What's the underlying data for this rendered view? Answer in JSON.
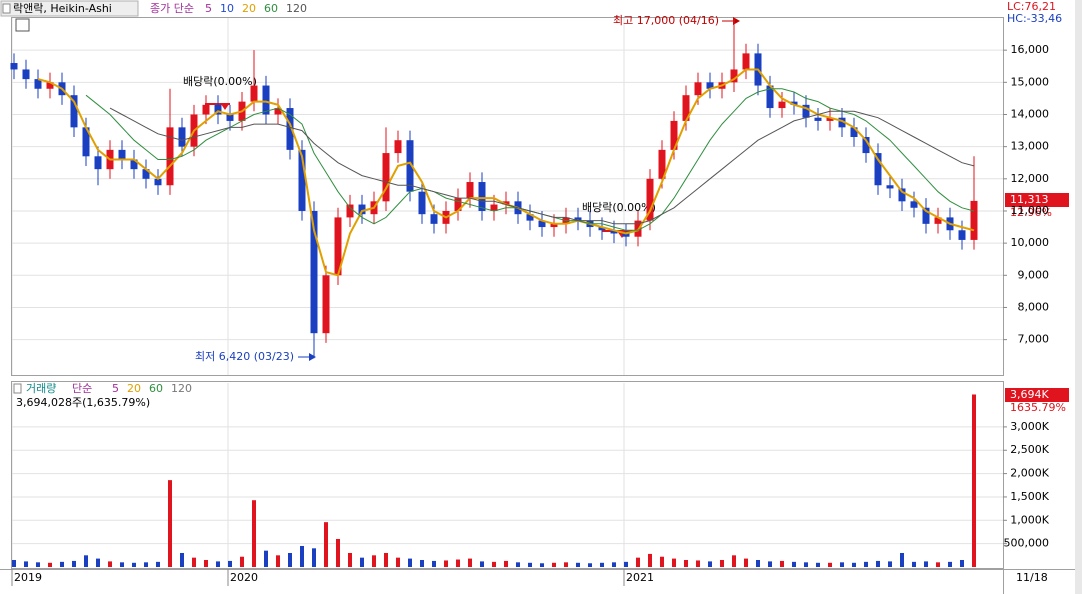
{
  "header": {
    "title": "락앤락, Heikin-Ashi",
    "lc": "LC:76,21",
    "hc": "HC:-33,46"
  },
  "chart_data": [
    {
      "type": "candlestick",
      "categories": [
        "2019",
        null,
        null,
        null,
        null,
        null,
        null,
        null,
        null,
        null,
        null,
        null,
        null,
        null,
        null,
        null,
        null,
        null,
        "2020",
        null,
        null,
        null,
        null,
        null,
        null,
        null,
        null,
        null,
        null,
        null,
        null,
        null,
        null,
        null,
        null,
        null,
        null,
        null,
        null,
        null,
        null,
        null,
        null,
        null,
        null,
        null,
        null,
        null,
        null,
        null,
        null,
        "2021",
        null,
        null,
        null,
        null,
        null,
        null,
        null,
        null,
        null,
        null,
        null,
        null,
        null,
        null,
        null,
        null,
        null,
        null,
        null,
        null,
        null,
        null,
        null,
        null,
        null,
        null,
        null,
        null,
        "11/18"
      ],
      "open": [
        15600,
        15400,
        15100,
        14800,
        15000,
        14600,
        13600,
        12700,
        12300,
        12900,
        12600,
        12300,
        12000,
        11800,
        13600,
        13000,
        14000,
        14300,
        14000,
        13800,
        14400,
        14900,
        14000,
        14200,
        12900,
        11000,
        7200,
        9000,
        10800,
        11200,
        10900,
        11300,
        12800,
        13200,
        11600,
        10900,
        10600,
        11000,
        11400,
        11900,
        11000,
        11200,
        11300,
        10900,
        10700,
        10500,
        10600,
        10800,
        10700,
        10500,
        10400,
        10300,
        10200,
        10700,
        12000,
        12900,
        13800,
        14600,
        15000,
        14800,
        15000,
        15400,
        15900,
        14900,
        14200,
        14400,
        14300,
        13900,
        13800,
        13900,
        13600,
        13300,
        12800,
        11800,
        11700,
        11300,
        11100,
        10600,
        10800,
        10400,
        10100
      ],
      "high": [
        15900,
        15700,
        15400,
        15300,
        15300,
        14900,
        13900,
        13000,
        13200,
        13200,
        12900,
        12600,
        12300,
        14800,
        13900,
        14300,
        14600,
        14600,
        14300,
        14700,
        16000,
        15200,
        14500,
        14500,
        13200,
        11300,
        9300,
        11100,
        11500,
        11500,
        11600,
        13600,
        13500,
        13500,
        11900,
        11200,
        11300,
        11700,
        12200,
        12200,
        11500,
        11600,
        11600,
        11200,
        11000,
        10900,
        11100,
        11100,
        11000,
        10800,
        10700,
        10600,
        11000,
        12300,
        13200,
        14100,
        14900,
        15300,
        15300,
        15300,
        17000,
        16200,
        16200,
        15200,
        14700,
        14700,
        14600,
        14200,
        14200,
        14200,
        13900,
        13600,
        13100,
        12100,
        12000,
        11600,
        11400,
        11100,
        11100,
        10700,
        12700
      ],
      "low": [
        15100,
        14800,
        14500,
        14500,
        14300,
        13300,
        12400,
        11800,
        12000,
        12300,
        12000,
        11700,
        11500,
        11500,
        12700,
        12700,
        13700,
        13700,
        13500,
        13500,
        14100,
        13700,
        13700,
        12600,
        10700,
        6420,
        6900,
        8700,
        10500,
        10600,
        10600,
        11000,
        12500,
        11300,
        10600,
        10300,
        10300,
        10700,
        11100,
        10700,
        10700,
        10900,
        10600,
        10400,
        10200,
        10200,
        10300,
        10400,
        10200,
        10100,
        10000,
        9900,
        9900,
        10400,
        11700,
        12600,
        13500,
        14300,
        14500,
        14500,
        14700,
        15100,
        14600,
        13900,
        13900,
        14000,
        13600,
        13500,
        13500,
        13300,
        13000,
        12500,
        11500,
        11400,
        11000,
        10800,
        10300,
        10300,
        10100,
        9800,
        9800
      ],
      "close": [
        15400,
        15100,
        14800,
        15000,
        14600,
        13600,
        12700,
        12300,
        12900,
        12600,
        12300,
        12000,
        11800,
        13600,
        13000,
        14000,
        14300,
        14000,
        13800,
        14400,
        14900,
        14000,
        14200,
        12900,
        11000,
        7200,
        9000,
        10800,
        11200,
        10900,
        11300,
        12800,
        13200,
        11600,
        10900,
        10600,
        11000,
        11400,
        11900,
        11000,
        11200,
        11300,
        10900,
        10700,
        10500,
        10600,
        10800,
        10700,
        10500,
        10400,
        10300,
        10200,
        10700,
        12000,
        12900,
        13800,
        14600,
        15000,
        14800,
        15000,
        15400,
        15900,
        14900,
        14200,
        14400,
        14300,
        13900,
        13800,
        13900,
        13600,
        13300,
        12800,
        11800,
        11700,
        11300,
        11100,
        10600,
        10800,
        10400,
        10100,
        11313
      ],
      "up_color": "#e0141e",
      "down_color": "#1a3fc0",
      "ylim": [
        5900,
        17000
      ],
      "yticks": [
        {
          "value": 7000,
          "label": "7,000"
        },
        {
          "value": 8000,
          "label": "8,000"
        },
        {
          "value": 9000,
          "label": "9,000"
        },
        {
          "value": 10000,
          "label": "10,000"
        },
        {
          "value": 11000,
          "label": "11,000"
        },
        {
          "value": 12000,
          "label": "12,000"
        },
        {
          "value": 13000,
          "label": "13,000"
        },
        {
          "value": 14000,
          "label": "14,000"
        },
        {
          "value": 15000,
          "label": "15,000"
        },
        {
          "value": 16000,
          "label": "16,000"
        }
      ],
      "grid": true,
      "legend_label": "종가 단순",
      "moving_averages": [
        {
          "name": "5",
          "color": "#a0309a"
        },
        {
          "name": "10",
          "color": "#1f4bd1"
        },
        {
          "name": "20",
          "color": "#e0a000",
          "values": [
            null,
            null,
            15100,
            15000,
            14800,
            14400,
            13600,
            12900,
            12600,
            12600,
            12600,
            12300,
            12000,
            12400,
            12800,
            13500,
            13800,
            14100,
            14000,
            14100,
            14400,
            14400,
            14300,
            13700,
            12700,
            10400,
            9100,
            9000,
            10300,
            11000,
            11100,
            11700,
            12400,
            12500,
            11900,
            11000,
            10800,
            11000,
            11400,
            11400,
            11400,
            11200,
            11100,
            10900,
            10700,
            10600,
            10600,
            10700,
            10600,
            10500,
            10400,
            10300,
            10400,
            11000,
            11900,
            12900,
            13800,
            14500,
            14800,
            14900,
            15100,
            15400,
            15400,
            14900,
            14500,
            14300,
            14200,
            14000,
            13900,
            13800,
            13600,
            13200,
            12600,
            12100,
            11600,
            11400,
            11000,
            10800,
            10600,
            10500,
            10400
          ]
        },
        {
          "name": "60",
          "color": "#2f8f3f",
          "values": [
            null,
            null,
            null,
            null,
            null,
            null,
            14600,
            14300,
            14000,
            13600,
            13200,
            12900,
            12600,
            12600,
            12700,
            12900,
            13200,
            13400,
            13600,
            13800,
            14000,
            14100,
            14200,
            14000,
            13700,
            12800,
            12200,
            11600,
            11100,
            10800,
            10600,
            10800,
            11200,
            11600,
            11700,
            11600,
            11400,
            11300,
            11200,
            11100,
            11000,
            11100,
            11100,
            11000,
            10900,
            10800,
            10700,
            10700,
            10600,
            10600,
            10500,
            10400,
            10400,
            10600,
            10900,
            11400,
            12000,
            12600,
            13200,
            13700,
            14100,
            14500,
            14700,
            14800,
            14800,
            14700,
            14500,
            14400,
            14200,
            14100,
            14000,
            13800,
            13500,
            13200,
            12800,
            12400,
            12000,
            11600,
            11300,
            11100,
            11000
          ]
        },
        {
          "name": "120",
          "color": "#555555",
          "values": [
            null,
            null,
            null,
            null,
            null,
            null,
            null,
            null,
            14200,
            14000,
            13800,
            13600,
            13400,
            13300,
            13200,
            13300,
            13400,
            13500,
            13600,
            13600,
            13700,
            13700,
            13700,
            13600,
            13500,
            13100,
            12800,
            12500,
            12300,
            12100,
            12000,
            11900,
            11800,
            11800,
            11700,
            11600,
            11500,
            11400,
            11400,
            11300,
            11300,
            11200,
            11100,
            11000,
            10900,
            10800,
            10800,
            10700,
            10700,
            10700,
            10600,
            10600,
            10600,
            10700,
            10900,
            11100,
            11400,
            11700,
            12000,
            12300,
            12600,
            12900,
            13200,
            13400,
            13600,
            13800,
            13900,
            14000,
            14100,
            14100,
            14100,
            14000,
            13900,
            13700,
            13500,
            13300,
            13100,
            12900,
            12700,
            12500,
            12400
          ]
        }
      ],
      "last_price_label": "11,313",
      "last_change_label": "12.96%",
      "annotations": {
        "high": "최고 17,000 (04/16)",
        "low": "최저 6,420 (03/23)",
        "ex_dividend": [
          "배당락(0.00%)",
          "배당락(0.00%)"
        ]
      }
    },
    {
      "type": "volume",
      "title": "거래량",
      "legend_label": "단순",
      "moving_averages": [
        {
          "name": "5",
          "color": "#a0309a"
        },
        {
          "name": "20",
          "color": "#e0a000"
        },
        {
          "name": "60",
          "color": "#2f8f3f"
        },
        {
          "name": "120",
          "color": "#777777"
        }
      ],
      "subtitle": "3,694,028주(1,635.79%)",
      "values": [
        150000,
        120000,
        100000,
        90000,
        110000,
        130000,
        250000,
        180000,
        120000,
        100000,
        90000,
        100000,
        110000,
        1860000,
        300000,
        200000,
        150000,
        120000,
        130000,
        220000,
        1430000,
        350000,
        250000,
        300000,
        450000,
        400000,
        960000,
        600000,
        300000,
        200000,
        250000,
        300000,
        200000,
        180000,
        150000,
        130000,
        140000,
        160000,
        180000,
        120000,
        110000,
        130000,
        100000,
        90000,
        80000,
        90000,
        100000,
        90000,
        80000,
        90000,
        100000,
        110000,
        200000,
        280000,
        220000,
        180000,
        150000,
        140000,
        120000,
        150000,
        250000,
        180000,
        150000,
        120000,
        130000,
        110000,
        100000,
        90000,
        90000,
        100000,
        90000,
        110000,
        130000,
        120000,
        300000,
        110000,
        120000,
        100000,
        110000,
        150000,
        3694028
      ],
      "ylim": [
        0,
        3940000
      ],
      "yticks": [
        {
          "value": 500000,
          "label": "500,000"
        },
        {
          "value": 1000000,
          "label": "1,000K"
        },
        {
          "value": 1500000,
          "label": "1,500K"
        },
        {
          "value": 2000000,
          "label": "2,000K"
        },
        {
          "value": 2500000,
          "label": "2,500K"
        },
        {
          "value": 3000000,
          "label": "3,000K"
        }
      ],
      "grid": true,
      "last_value_label": "3,694K",
      "last_change_label": "1635.79%"
    }
  ]
}
